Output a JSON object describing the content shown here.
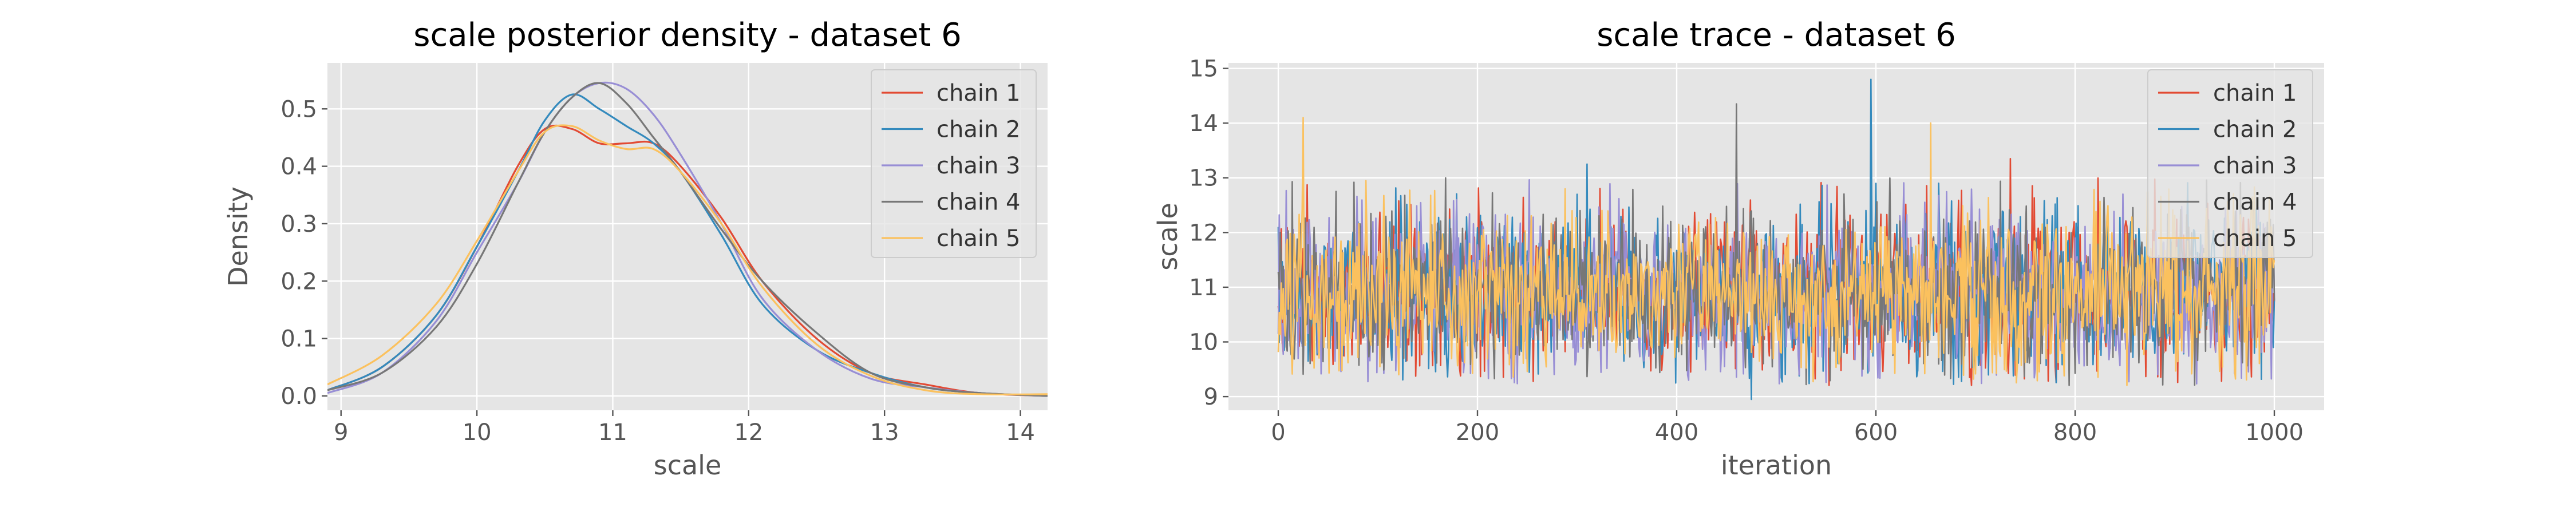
{
  "colors": {
    "panel_bg": "#E5E5E5",
    "grid": "#FFFFFF",
    "tick_text": "#555555",
    "title_text": "#000000",
    "series": [
      "#E24A33",
      "#348ABD",
      "#988ED5",
      "#777777",
      "#FBC15E"
    ]
  },
  "chart_data": [
    {
      "type": "line",
      "title": "scale posterior density - dataset 6",
      "xlabel": "scale",
      "ylabel": "Density",
      "xlim": [
        8.9,
        14.2
      ],
      "ylim": [
        -0.025,
        0.58
      ],
      "xticks": [
        9,
        10,
        11,
        12,
        13,
        14
      ],
      "yticks": [
        0.0,
        0.1,
        0.2,
        0.3,
        0.4,
        0.5
      ],
      "ytick_labels": [
        "0.0",
        "0.1",
        "0.2",
        "0.3",
        "0.4",
        "0.5"
      ],
      "grid": true,
      "legend": "top-right",
      "series": [
        {
          "name": "chain 1",
          "x": [
            8.9,
            9.3,
            9.7,
            10.0,
            10.3,
            10.5,
            10.7,
            10.9,
            11.1,
            11.3,
            11.5,
            11.8,
            12.1,
            12.5,
            12.9,
            13.3,
            13.7,
            14.2
          ],
          "y": [
            0.01,
            0.05,
            0.14,
            0.26,
            0.4,
            0.465,
            0.465,
            0.44,
            0.44,
            0.44,
            0.4,
            0.31,
            0.2,
            0.1,
            0.04,
            0.02,
            0.005,
            0.0
          ]
        },
        {
          "name": "chain 2",
          "x": [
            8.9,
            9.3,
            9.7,
            10.0,
            10.3,
            10.5,
            10.7,
            10.9,
            11.1,
            11.3,
            11.5,
            11.8,
            12.1,
            12.5,
            12.9,
            13.3,
            13.7,
            14.2
          ],
          "y": [
            0.01,
            0.05,
            0.14,
            0.26,
            0.39,
            0.48,
            0.525,
            0.5,
            0.47,
            0.44,
            0.39,
            0.28,
            0.16,
            0.08,
            0.04,
            0.015,
            0.005,
            0.0
          ]
        },
        {
          "name": "chain 3",
          "x": [
            8.9,
            9.3,
            9.7,
            10.0,
            10.3,
            10.5,
            10.7,
            10.9,
            11.1,
            11.3,
            11.5,
            11.8,
            12.1,
            12.5,
            12.9,
            13.3,
            13.7,
            14.2
          ],
          "y": [
            0.005,
            0.04,
            0.13,
            0.25,
            0.37,
            0.46,
            0.52,
            0.545,
            0.535,
            0.49,
            0.42,
            0.3,
            0.17,
            0.08,
            0.03,
            0.015,
            0.005,
            0.0
          ]
        },
        {
          "name": "chain 4",
          "x": [
            8.9,
            9.3,
            9.7,
            10.0,
            10.3,
            10.5,
            10.7,
            10.9,
            11.1,
            11.3,
            11.5,
            11.8,
            12.1,
            12.5,
            12.9,
            13.3,
            13.7,
            14.2
          ],
          "y": [
            0.01,
            0.04,
            0.12,
            0.23,
            0.37,
            0.46,
            0.52,
            0.545,
            0.51,
            0.45,
            0.39,
            0.29,
            0.2,
            0.11,
            0.04,
            0.015,
            0.005,
            0.0
          ]
        },
        {
          "name": "chain 5",
          "x": [
            8.9,
            9.3,
            9.7,
            10.0,
            10.3,
            10.5,
            10.7,
            10.9,
            11.1,
            11.3,
            11.5,
            11.8,
            12.1,
            12.5,
            12.9,
            13.3,
            13.7,
            14.2
          ],
          "y": [
            0.02,
            0.07,
            0.16,
            0.27,
            0.39,
            0.46,
            0.47,
            0.445,
            0.43,
            0.43,
            0.39,
            0.3,
            0.19,
            0.09,
            0.035,
            0.01,
            0.003,
            0.003
          ]
        }
      ]
    },
    {
      "type": "line",
      "title": "scale trace - dataset 6",
      "xlabel": "iteration",
      "ylabel": "scale",
      "xlim": [
        -50,
        1050
      ],
      "ylim": [
        8.75,
        15.1
      ],
      "xticks": [
        0,
        200,
        400,
        600,
        800,
        1000
      ],
      "yticks": [
        9,
        10,
        11,
        12,
        13,
        14,
        15
      ],
      "grid": true,
      "legend": "top-right",
      "iterations": 1000,
      "mean": 10.9,
      "spikes": [
        {
          "series": "chain 1",
          "x": 735,
          "y": 13.35
        },
        {
          "series": "chain 2",
          "x": 595,
          "y": 14.8
        },
        {
          "series": "chain 2",
          "x": 310,
          "y": 13.25
        },
        {
          "series": "chain 2",
          "x": 475,
          "y": 8.95
        },
        {
          "series": "chain 4",
          "x": 460,
          "y": 14.35
        },
        {
          "series": "chain 5",
          "x": 25,
          "y": 14.1
        },
        {
          "series": "chain 5",
          "x": 655,
          "y": 14.0
        }
      ],
      "series": [
        {
          "name": "chain 1"
        },
        {
          "name": "chain 2"
        },
        {
          "name": "chain 3"
        },
        {
          "name": "chain 4"
        },
        {
          "name": "chain 5"
        }
      ]
    }
  ]
}
